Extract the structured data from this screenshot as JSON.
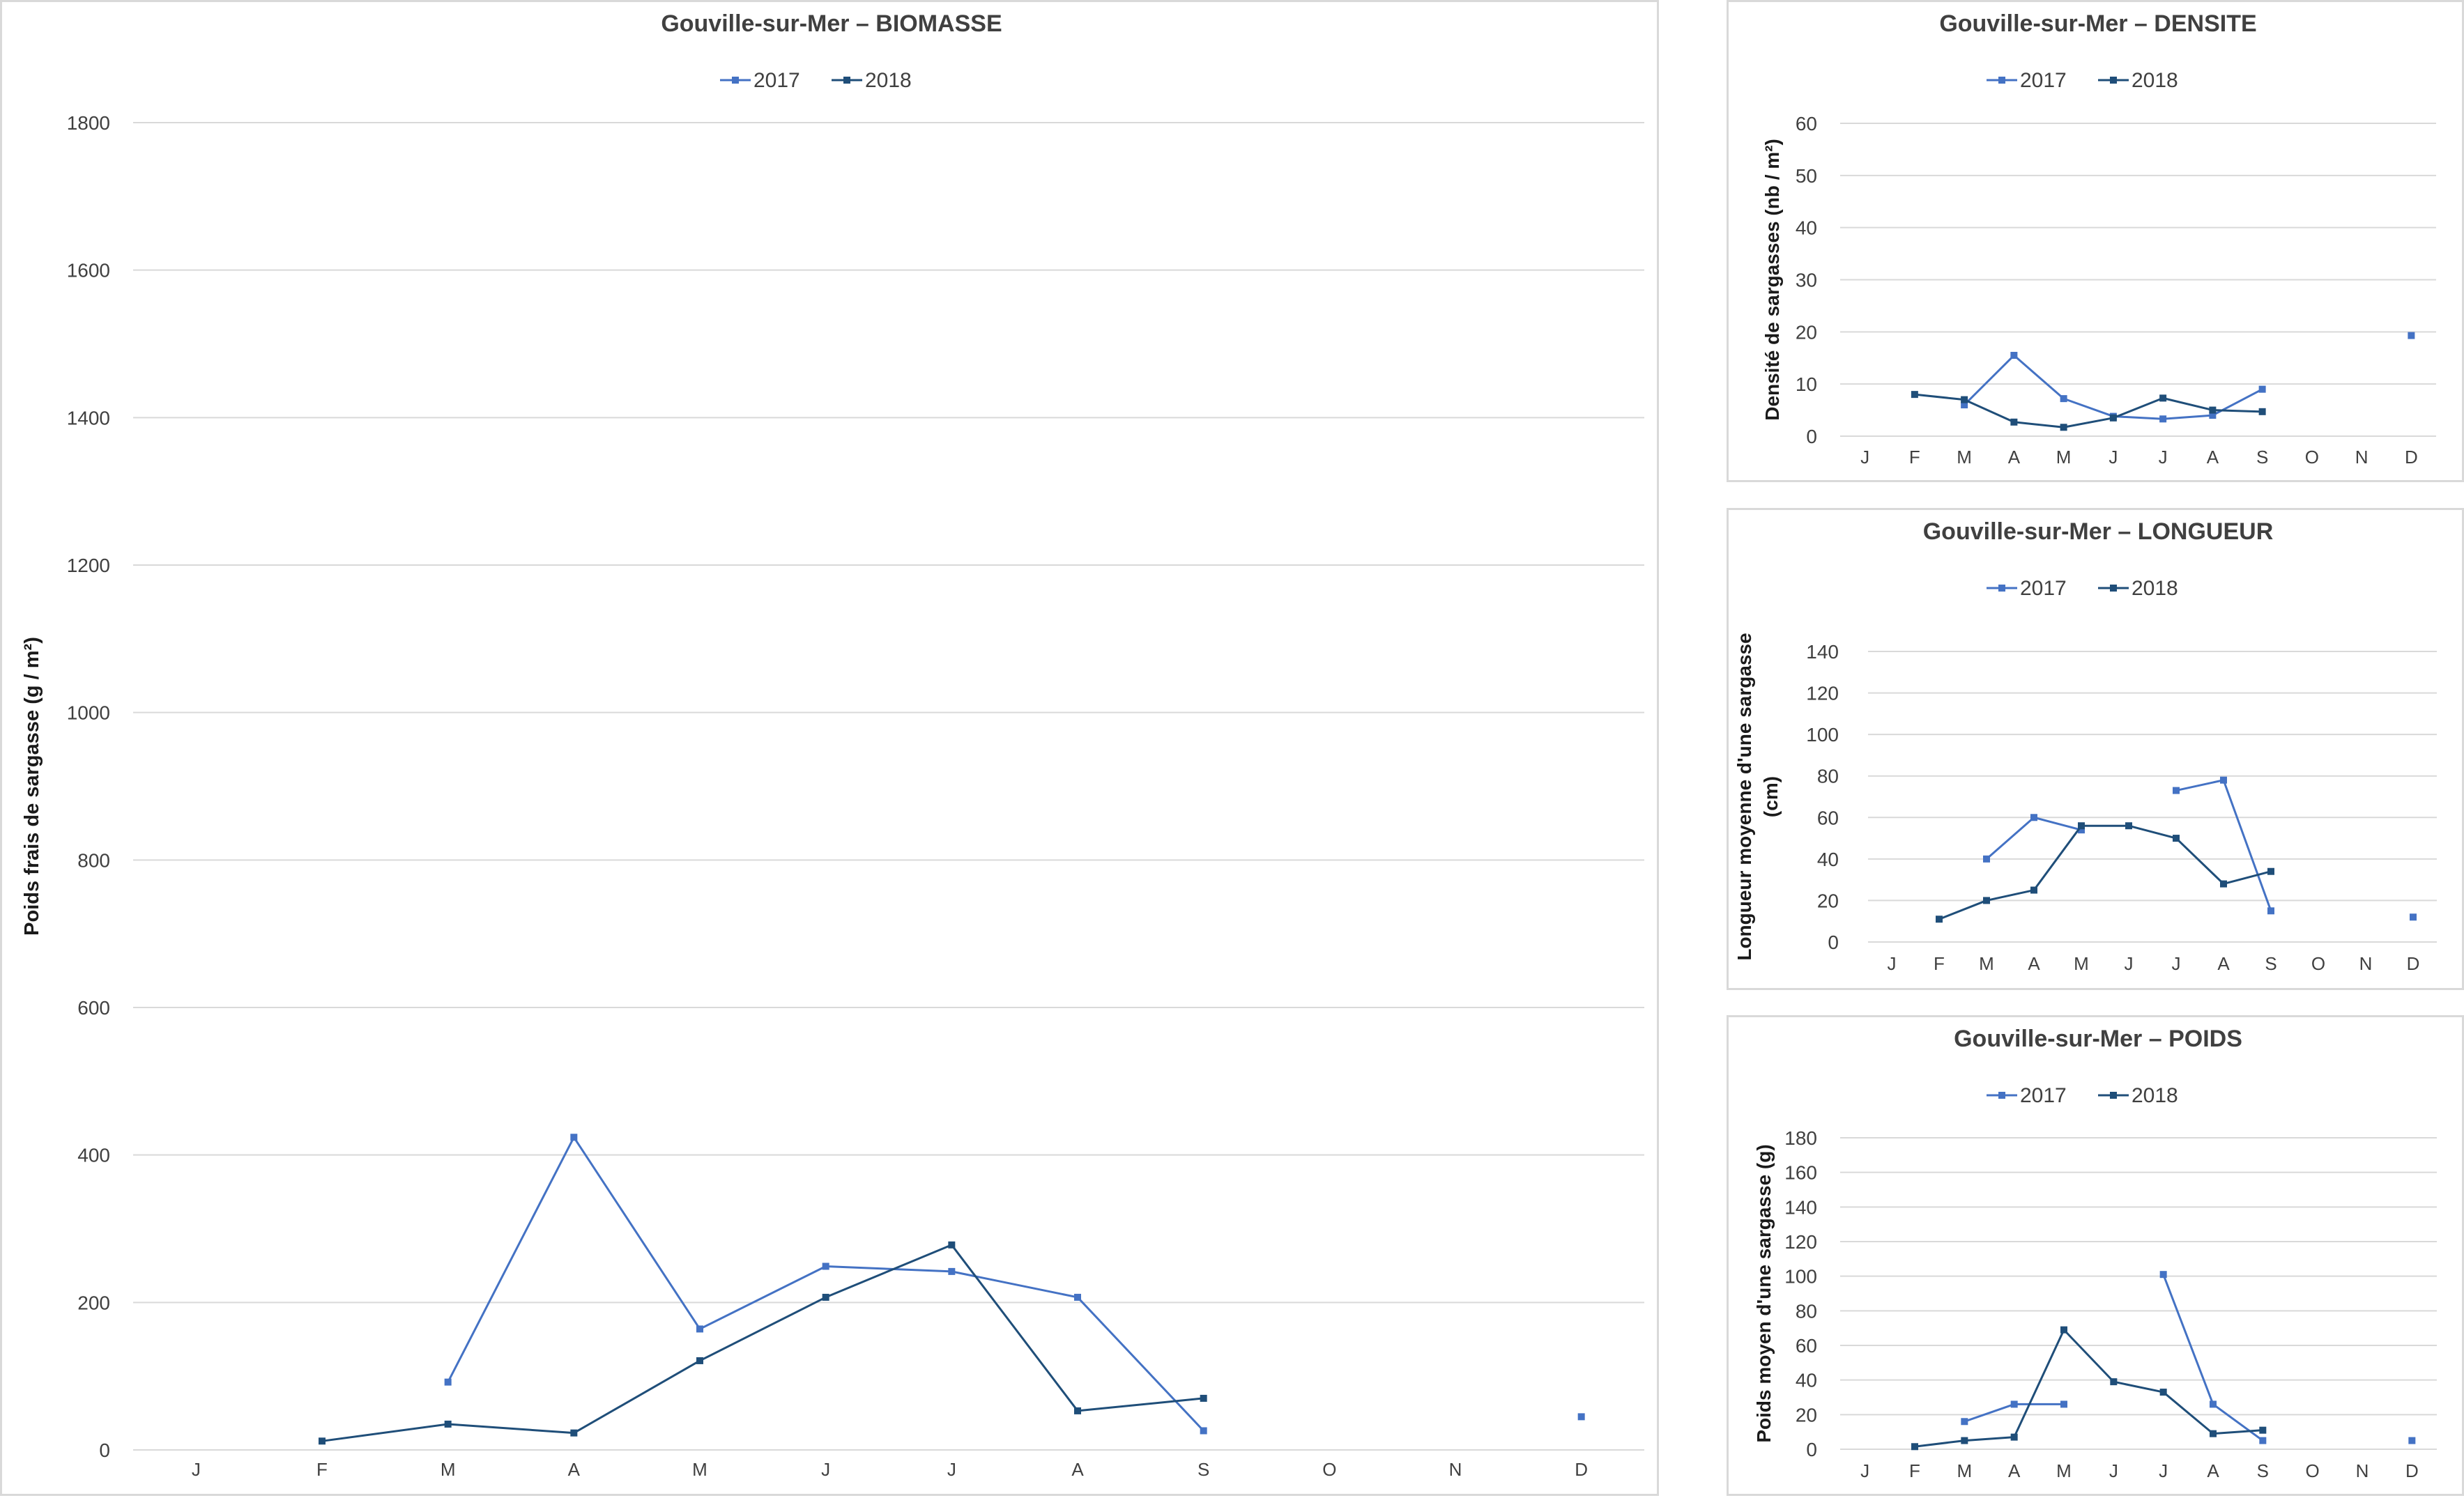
{
  "colors": {
    "s2017": "#4472c4",
    "s2018": "#1f4e79",
    "grid": "#d9d9d9",
    "text": "#404040"
  },
  "chart_data": [
    {
      "type": "line",
      "title": "Gouville-sur-Mer  –  BIOMASSE",
      "ylabel": "Poids frais de sargasse (g / m²)",
      "categories": [
        "J",
        "F",
        "M",
        "A",
        "M",
        "J",
        "J",
        "A",
        "S",
        "O",
        "N",
        "D"
      ],
      "yticks": [
        0,
        200,
        400,
        600,
        800,
        1000,
        1200,
        1400,
        1600,
        1800
      ],
      "ylim": [
        0,
        1800
      ],
      "grid": true,
      "legend": "top-center",
      "series": [
        {
          "name": "2017",
          "values": [
            null,
            null,
            92,
            424,
            164,
            249,
            242,
            207,
            26,
            null,
            null,
            45
          ]
        },
        {
          "name": "2018",
          "values": [
            null,
            12,
            35,
            23,
            121,
            207,
            278,
            53,
            70,
            null,
            null,
            null
          ]
        }
      ]
    },
    {
      "type": "line",
      "title": "Gouville-sur-Mer  –  DENSITE",
      "ylabel": "Densité de sargasses (nb / m²)",
      "categories": [
        "J",
        "F",
        "M",
        "A",
        "M",
        "J",
        "J",
        "A",
        "S",
        "O",
        "N",
        "D"
      ],
      "yticks": [
        0,
        10,
        20,
        30,
        40,
        50,
        60
      ],
      "ylim": [
        0,
        60
      ],
      "grid": true,
      "legend": "top-center",
      "series": [
        {
          "name": "2017",
          "values": [
            null,
            null,
            6,
            15.5,
            7.2,
            3.8,
            3.3,
            4,
            9,
            null,
            null,
            19.3
          ]
        },
        {
          "name": "2018",
          "values": [
            null,
            8,
            7,
            2.7,
            1.7,
            3.5,
            7.3,
            5,
            4.7,
            null,
            null,
            null
          ]
        }
      ]
    },
    {
      "type": "line",
      "title": "Gouville-sur-Mer  –  LONGUEUR",
      "ylabel": "Longueur moyenne d'une sargasse (cm)",
      "ylabel_lines": [
        "Longueur moyenne d'une sargasse",
        "(cm)"
      ],
      "categories": [
        "J",
        "F",
        "M",
        "A",
        "M",
        "J",
        "J",
        "A",
        "S",
        "O",
        "N",
        "D"
      ],
      "yticks": [
        0,
        20,
        40,
        60,
        80,
        100,
        120,
        140
      ],
      "ylim": [
        0,
        140
      ],
      "grid": true,
      "legend": "top-center",
      "series": [
        {
          "name": "2017",
          "values": [
            null,
            null,
            40,
            60,
            54,
            null,
            73,
            78,
            15,
            null,
            null,
            12
          ]
        },
        {
          "name": "2018",
          "values": [
            null,
            11,
            20,
            25,
            56,
            56,
            50,
            28,
            34,
            null,
            null,
            null
          ]
        }
      ]
    },
    {
      "type": "line",
      "title": "Gouville-sur-Mer  –  POIDS",
      "ylabel": "Poids moyen d'une sargasse (g)",
      "categories": [
        "J",
        "F",
        "M",
        "A",
        "M",
        "J",
        "J",
        "A",
        "S",
        "O",
        "N",
        "D"
      ],
      "yticks": [
        0,
        20,
        40,
        60,
        80,
        100,
        120,
        140,
        160,
        180
      ],
      "ylim": [
        0,
        180
      ],
      "grid": true,
      "legend": "top-center",
      "series": [
        {
          "name": "2017",
          "values": [
            null,
            null,
            16,
            26,
            26,
            null,
            101,
            26,
            5,
            null,
            null,
            5
          ]
        },
        {
          "name": "2018",
          "values": [
            null,
            1.5,
            5,
            7,
            69,
            39,
            33,
            9,
            11,
            null,
            null,
            null
          ]
        }
      ]
    }
  ]
}
